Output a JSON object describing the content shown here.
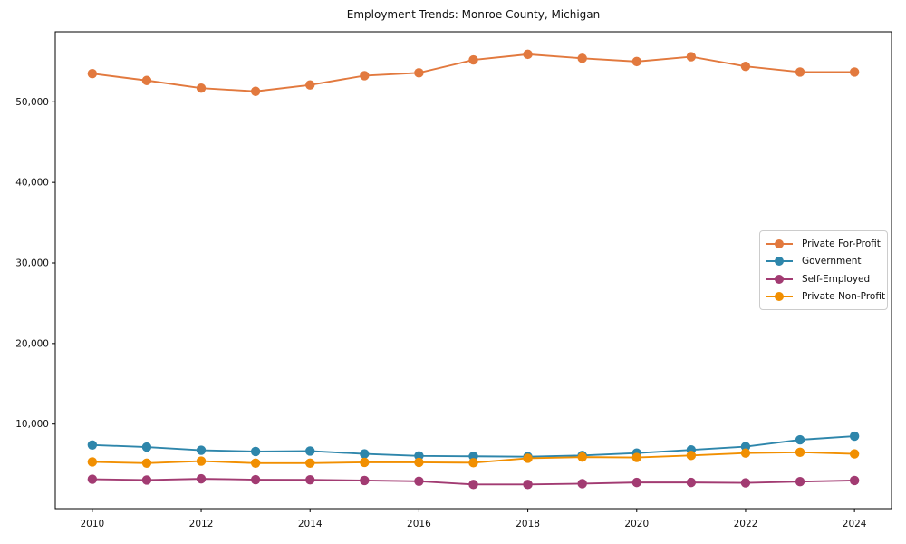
{
  "title": "Employment Trends: Monroe County, Michigan",
  "chart_data": {
    "type": "line",
    "title": "Employment Trends: Monroe County, Michigan",
    "xlabel": "",
    "ylabel": "",
    "grid": false,
    "legend_position": "center-right",
    "x": [
      2010,
      2011,
      2012,
      2013,
      2014,
      2015,
      2016,
      2017,
      2018,
      2019,
      2020,
      2021,
      2022,
      2023,
      2024
    ],
    "x_ticks": [
      2010,
      2012,
      2014,
      2016,
      2018,
      2020,
      2022,
      2024
    ],
    "x_tick_labels": [
      "2010",
      "2012",
      "2014",
      "2016",
      "2018",
      "2020",
      "2022",
      "2024"
    ],
    "y_ticks": [
      10000,
      20000,
      30000,
      40000,
      50000
    ],
    "y_tick_labels": [
      "10,000",
      "20,000",
      "30,000",
      "40,000",
      "50,000"
    ],
    "xlim": [
      2009.32,
      2024.68
    ],
    "ylim": [
      -500,
      58700
    ],
    "series": [
      {
        "name": "Private For-Profit",
        "color": "#E2793E",
        "values": [
          53500,
          52650,
          51700,
          51300,
          52100,
          53250,
          53600,
          55200,
          55900,
          55400,
          55000,
          55600,
          54400,
          53700,
          53700
        ]
      },
      {
        "name": "Government",
        "color": "#2E86AB",
        "values": [
          7400,
          7150,
          6750,
          6600,
          6650,
          6300,
          6050,
          6000,
          5950,
          6100,
          6400,
          6800,
          7200,
          8050,
          8500
        ]
      },
      {
        "name": "Self-Employed",
        "color": "#A23B72",
        "values": [
          3150,
          3050,
          3200,
          3100,
          3080,
          3000,
          2900,
          2500,
          2500,
          2600,
          2750,
          2750,
          2700,
          2850,
          3000
        ]
      },
      {
        "name": "Private Non-Profit",
        "color": "#F18F01",
        "values": [
          5300,
          5150,
          5400,
          5150,
          5150,
          5250,
          5250,
          5200,
          5750,
          5900,
          5850,
          6100,
          6400,
          6500,
          6300
        ]
      }
    ]
  }
}
